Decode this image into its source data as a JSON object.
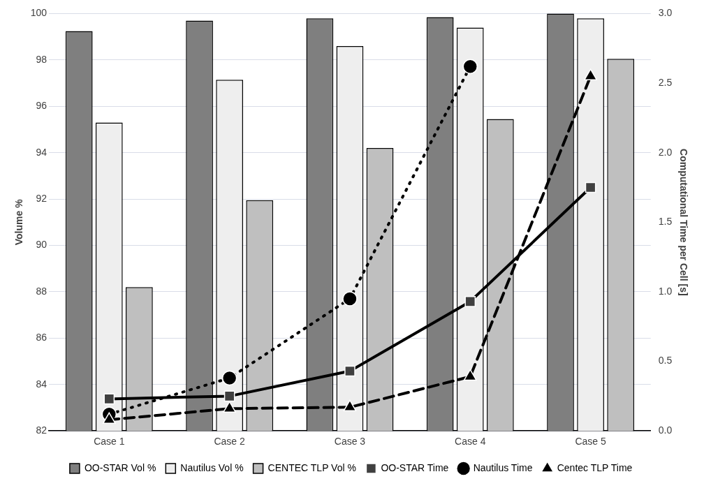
{
  "chart_data": {
    "type": "bar",
    "ylabel": "Volume %",
    "y2label": "Computational Time per Cell [s]",
    "categories": [
      "Case 1",
      "Case 2",
      "Case 3",
      "Case 4",
      "Case 5"
    ],
    "series": [
      {
        "name": "OO-STAR Vol %",
        "color": "#7f7f7f",
        "values": [
          99.25,
          99.7,
          99.8,
          99.85,
          100.0
        ]
      },
      {
        "name": "Nautilus Vol %",
        "color": "#eeeeee",
        "values": [
          95.3,
          97.15,
          98.6,
          99.4,
          99.8
        ]
      },
      {
        "name": "CENTEC TLP Vol %",
        "color": "#bfbfbf",
        "values": [
          88.2,
          91.95,
          94.2,
          95.45,
          98.05
        ]
      },
      {
        "name": "OO-STAR Time",
        "type": "line",
        "axis": "y2",
        "color": "#000000",
        "marker": "square",
        "line_style": "solid",
        "values": [
          0.23,
          0.25,
          0.43,
          0.93,
          1.75
        ]
      },
      {
        "name": "Nautilus Time",
        "type": "line",
        "axis": "y2",
        "color": "#000000",
        "marker": "circle",
        "line_style": "dotted",
        "values": [
          0.12,
          0.38,
          0.95,
          2.62,
          null
        ]
      },
      {
        "name": "Centec TLP Time",
        "type": "line",
        "axis": "y2",
        "color": "#000000",
        "marker": "triangle",
        "line_style": "dashed",
        "values": [
          0.08,
          0.16,
          0.17,
          0.39,
          2.55
        ]
      }
    ],
    "ylim": [
      82,
      100
    ],
    "yticks": [
      82,
      84,
      86,
      88,
      90,
      92,
      94,
      96,
      98,
      100
    ],
    "y2lim": [
      0,
      3
    ],
    "y2ticks": [
      {
        "value": 0,
        "label": "0.0"
      },
      {
        "value": 0.5,
        "label": "0.5"
      },
      {
        "value": 1,
        "label": "1.0"
      },
      {
        "value": 1.5,
        "label": "1.5"
      },
      {
        "value": 2,
        "label": "2.0"
      },
      {
        "value": 2.5,
        "label": "2.5"
      },
      {
        "value": 3,
        "label": "3.0"
      }
    ],
    "grid": "y",
    "legend": "bottom"
  }
}
